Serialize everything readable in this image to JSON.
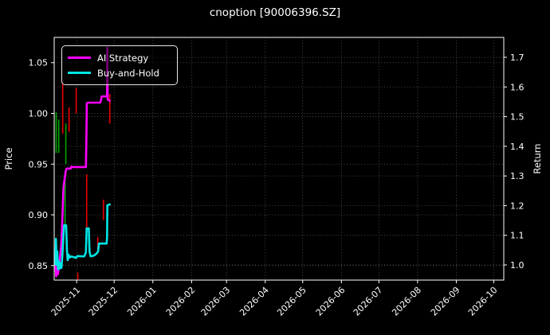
{
  "title": "cnoption [90006396.SZ]",
  "legend": [
    {
      "label": "AI Strategy",
      "color": "#ff00ff"
    },
    {
      "label": "Buy-and-Hold",
      "color": "#00e5e5"
    }
  ],
  "chart_data": {
    "type": "line",
    "title": "cnoption [90006396.SZ]",
    "grid": true,
    "legend_position": "upper-left",
    "x_axis": {
      "label": "",
      "epoch": "2025-10-15",
      "xlim": [
        -1,
        359
      ],
      "tick_days": [
        17,
        47,
        78,
        109,
        137,
        168,
        198,
        229,
        259,
        290,
        321,
        351
      ],
      "tick_labels": [
        "2025-11",
        "2025-12",
        "2026-01",
        "2026-02",
        "2026-03",
        "2026-04",
        "2026-05",
        "2026-06",
        "2026-07",
        "2026-08",
        "2026-09",
        "2026-10"
      ]
    },
    "y_left": {
      "label": "Price",
      "ylim": [
        0.8357,
        1.0749
      ],
      "ticks": [
        0.85,
        0.9,
        0.95,
        1.0,
        1.05
      ],
      "tick_labels": [
        "0.85",
        "0.90",
        "0.95",
        "1.00",
        "1.05"
      ]
    },
    "y_right": {
      "label": "Return",
      "ylim": [
        0.949,
        1.767
      ],
      "ticks": [
        1.0,
        1.1,
        1.2,
        1.3,
        1.4,
        1.5,
        1.6,
        1.7
      ],
      "tick_labels": [
        "1.0",
        "1.1",
        "1.2",
        "1.3",
        "1.4",
        "1.5",
        "1.6",
        "1.7"
      ]
    },
    "series": [
      {
        "name": "AI Strategy",
        "axis": "right",
        "color": "#ff00ff",
        "width": 2.6,
        "points": [
          [
            0,
            1.0
          ],
          [
            0.6,
            0.962
          ],
          [
            1.3,
            0.99
          ],
          [
            1.9,
            0.968
          ],
          [
            2.6,
            0.99
          ],
          [
            3.2,
            1.01
          ],
          [
            4.5,
            1.06
          ],
          [
            5.1,
            1.11
          ],
          [
            5.8,
            1.19
          ],
          [
            6.4,
            1.26
          ],
          [
            7.7,
            1.3
          ],
          [
            8.3,
            1.318
          ],
          [
            9.0,
            1.325
          ],
          [
            12.2,
            1.325
          ],
          [
            12.8,
            1.332
          ],
          [
            13.4,
            1.33
          ],
          [
            24.4,
            1.33
          ],
          [
            24.8,
            1.43
          ],
          [
            25.1,
            1.545
          ],
          [
            26.0,
            1.547
          ],
          [
            35.8,
            1.547
          ],
          [
            36.5,
            1.556
          ],
          [
            37.0,
            1.568
          ],
          [
            40.9,
            1.568
          ],
          [
            41.3,
            1.572
          ],
          [
            41.5,
            1.732
          ],
          [
            41.8,
            1.558
          ],
          [
            43.5,
            1.553
          ]
        ]
      },
      {
        "name": "Buy-and-Hold",
        "axis": "right",
        "color": "#00e5e5",
        "width": 2.6,
        "points": [
          [
            0,
            1.002
          ],
          [
            0.4,
            1.088
          ],
          [
            0.9,
            1.0
          ],
          [
            1.4,
            1.046
          ],
          [
            2.1,
            0.985
          ],
          [
            2.8,
            1.012
          ],
          [
            3.4,
            0.988
          ],
          [
            4.2,
            1.005
          ],
          [
            4.8,
            0.99
          ],
          [
            5.5,
            1.03
          ],
          [
            6.4,
            1.1
          ],
          [
            7.0,
            1.134
          ],
          [
            8.6,
            1.134
          ],
          [
            9.2,
            1.05
          ],
          [
            9.8,
            1.016
          ],
          [
            10.5,
            1.035
          ],
          [
            11.2,
            1.025
          ],
          [
            12.5,
            1.029
          ],
          [
            16.6,
            1.024
          ],
          [
            17.5,
            1.03
          ],
          [
            23.0,
            1.029
          ],
          [
            24.4,
            1.043
          ],
          [
            25.0,
            1.123
          ],
          [
            26.7,
            1.123
          ],
          [
            27.3,
            1.045
          ],
          [
            28.2,
            1.029
          ],
          [
            31.0,
            1.032
          ],
          [
            33.3,
            1.04
          ],
          [
            34.2,
            1.046
          ],
          [
            34.8,
            1.072
          ],
          [
            41.0,
            1.072
          ],
          [
            41.3,
            1.095
          ],
          [
            41.6,
            1.201
          ],
          [
            43.5,
            1.204
          ]
        ]
      }
    ],
    "price_bars": [
      {
        "day": 0.6,
        "high": 1.001,
        "low": 0.961,
        "dir": "up"
      },
      {
        "day": 2.6,
        "high": 0.994,
        "low": 0.961,
        "dir": "up"
      },
      {
        "day": 5.8,
        "high": 1.03,
        "low": 0.98,
        "dir": "down"
      },
      {
        "day": 7.7,
        "high": 0.935,
        "low": 0.89,
        "dir": "up"
      },
      {
        "day": 8.3,
        "high": 0.99,
        "low": 0.95,
        "dir": "up"
      },
      {
        "day": 10.9,
        "high": 1.006,
        "low": 0.982,
        "dir": "down"
      },
      {
        "day": 16.6,
        "high": 1.025,
        "low": 1.0,
        "dir": "down"
      },
      {
        "day": 17.9,
        "high": 0.843,
        "low": 0.836,
        "dir": "down"
      },
      {
        "day": 25.0,
        "high": 0.94,
        "low": 0.884,
        "dir": "down"
      },
      {
        "day": 33.9,
        "high": 0.878,
        "low": 0.866,
        "dir": "down"
      },
      {
        "day": 38.4,
        "high": 0.915,
        "low": 0.895,
        "dir": "down"
      },
      {
        "day": 43.5,
        "high": 1.019,
        "low": 0.99,
        "dir": "down"
      }
    ],
    "colors": {
      "background": "#000000",
      "text": "#ffffff",
      "spine": "#ffffff",
      "grid": "#6e6e6e",
      "up": "#00a000",
      "down": "#e00000",
      "ai_strategy": "#ff00ff",
      "buy_and_hold": "#00e5e5"
    }
  }
}
